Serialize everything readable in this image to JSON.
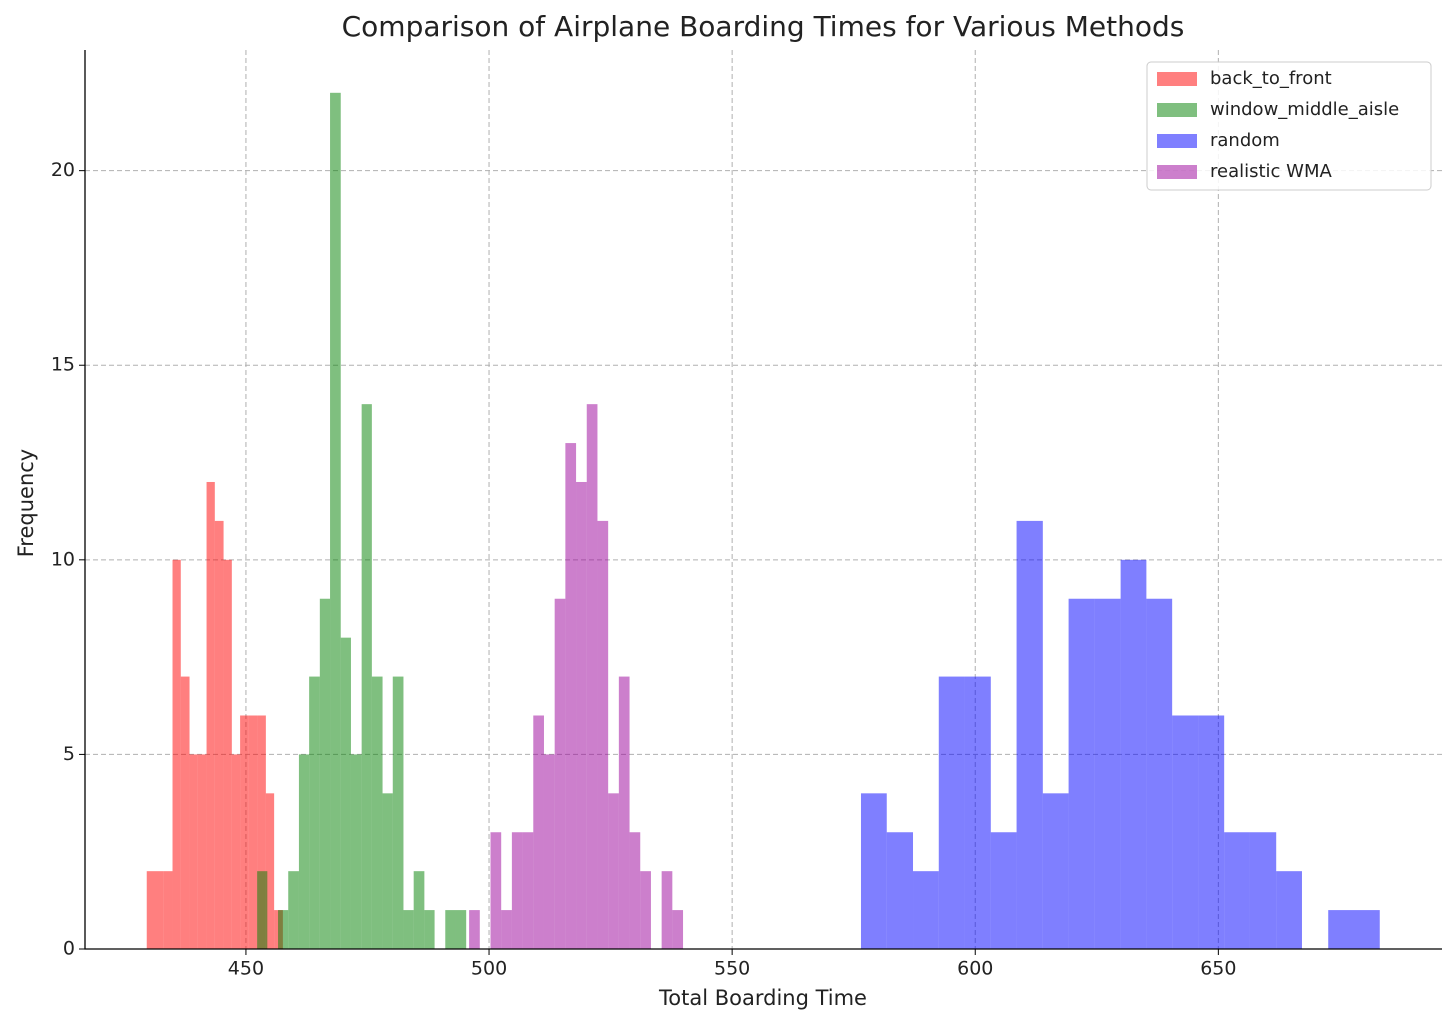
{
  "chart_data": {
    "type": "histogram",
    "title": "Comparison of Airplane Boarding Times for Various Methods",
    "xlabel": "Total Boarding Time",
    "ylabel": "Frequency",
    "xlim": [
      416.9,
      696
    ],
    "ylim": [
      0,
      23.1
    ],
    "xticks": [
      450,
      500,
      550,
      600,
      650
    ],
    "yticks": [
      0,
      5,
      10,
      15,
      20
    ],
    "grid": true,
    "legend": "upper right",
    "series": [
      {
        "name": "back_to_front",
        "color": "#ff0000",
        "bins": [
          429.6,
          431.4,
          433.1,
          434.9,
          436.6,
          438.4,
          440.1,
          441.9,
          443.6,
          445.4,
          447.1,
          448.8,
          450.6,
          452.3,
          454.1,
          455.8,
          457.6
        ],
        "values": [
          2,
          2,
          2,
          10,
          7,
          5,
          5,
          12,
          11,
          10,
          5,
          6,
          6,
          6,
          4,
          1
        ]
      },
      {
        "name": "window_middle_aisle",
        "color": "#008000",
        "bins": [
          452.3,
          454.4,
          456.6,
          458.7,
          460.9,
          463.0,
          465.2,
          467.3,
          469.5,
          471.6,
          473.8,
          475.9,
          478.1,
          480.2,
          482.4,
          484.5,
          486.7,
          488.8,
          491.0,
          493.1,
          495.3
        ],
        "values": [
          2,
          0,
          1,
          2,
          5,
          7,
          9,
          22,
          8,
          5,
          14,
          7,
          4,
          7,
          1,
          2,
          1,
          0,
          1,
          1
        ]
      },
      {
        "name": "random",
        "color": "#0000ff",
        "bins": [
          576.5,
          581.8,
          587.2,
          592.5,
          597.8,
          603.2,
          608.5,
          613.9,
          619.2,
          624.5,
          629.9,
          635.2,
          640.5,
          645.9,
          651.2,
          656.5,
          661.9,
          667.2,
          672.6,
          677.9,
          683.2
        ],
        "values": [
          4,
          3,
          2,
          7,
          7,
          3,
          11,
          4,
          9,
          9,
          10,
          9,
          6,
          6,
          3,
          3,
          2,
          0,
          1,
          1
        ]
      },
      {
        "name": "realistic WMA",
        "color": "#990099",
        "bins": [
          495.9,
          498.1,
          500.3,
          502.5,
          504.7,
          506.9,
          509.1,
          511.3,
          513.5,
          515.7,
          517.9,
          520.1,
          522.3,
          524.5,
          526.7,
          528.9,
          531.1,
          533.3,
          535.5,
          537.7,
          539.9
        ],
        "values": [
          1,
          0,
          3,
          1,
          3,
          3,
          6,
          5,
          9,
          13,
          12,
          14,
          11,
          4,
          7,
          3,
          2,
          0,
          2,
          1
        ]
      }
    ]
  }
}
